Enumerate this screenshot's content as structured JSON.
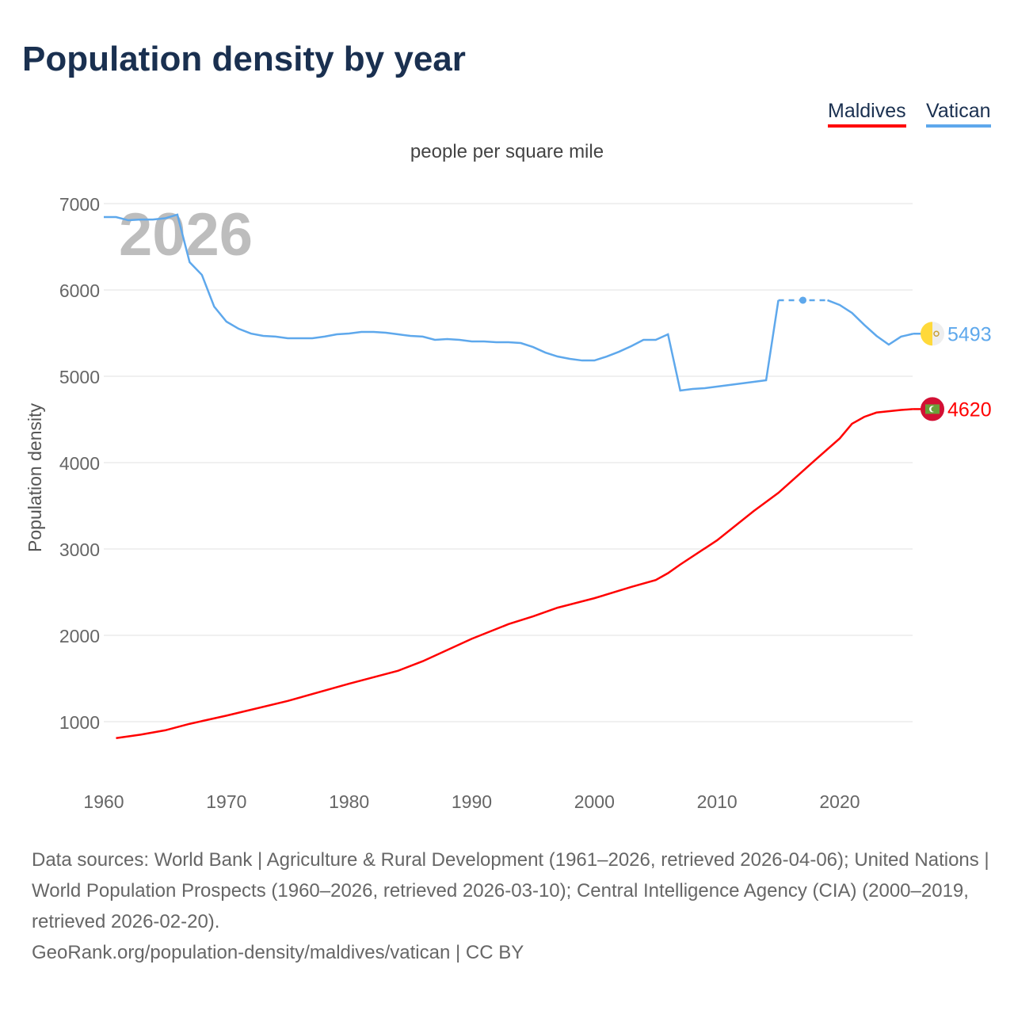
{
  "title": "Population density by year",
  "legend": [
    {
      "name": "Maldives",
      "color": "#ff0000"
    },
    {
      "name": "Vatican",
      "color": "#5ea8ec"
    }
  ],
  "unit_label": "people per square mile",
  "footer": {
    "sources": "Data sources: World Bank | Agriculture & Rural Development (1961–2026, retrieved 2026-04-06); United Nations | World Population Prospects (1960–2026, retrieved 2026-03-10); Central Intelligence Agency (CIA) (2000–2019, retrieved 2026-02-20).",
    "link": "GeoRank.org/population-density/maldives/vatican | CC BY"
  },
  "chart_data": {
    "type": "line",
    "title": "Population density by year",
    "ylabel": "Population density",
    "xlabel": "",
    "year_watermark": "2026",
    "xlim": [
      1960,
      2026
    ],
    "ylim": [
      1000,
      7000
    ],
    "xticks": [
      "1960",
      "1970",
      "1980",
      "1990",
      "2000",
      "2010",
      "2020"
    ],
    "yticks": [
      "1000",
      "2000",
      "3000",
      "4000",
      "5000",
      "6000",
      "7000"
    ],
    "grid": true,
    "series": [
      {
        "name": "Vatican",
        "color": "#5ea8ec",
        "end_label": "5493",
        "dashed_range": [
          2015,
          2019
        ],
        "marker_year": 2017,
        "x": [
          1960,
          1961,
          1962,
          1963,
          1964,
          1965,
          1966,
          1967,
          1968,
          1969,
          1970,
          1971,
          1972,
          1973,
          1974,
          1975,
          1976,
          1977,
          1978,
          1979,
          1980,
          1981,
          1982,
          1983,
          1984,
          1985,
          1986,
          1987,
          1988,
          1989,
          1990,
          1991,
          1992,
          1993,
          1994,
          1995,
          1996,
          1997,
          1998,
          1999,
          2000,
          2001,
          2002,
          2003,
          2004,
          2005,
          2006,
          2007,
          2008,
          2009,
          2010,
          2011,
          2012,
          2013,
          2014,
          2015,
          2016,
          2017,
          2018,
          2019,
          2020,
          2021,
          2022,
          2023,
          2024,
          2025,
          2026
        ],
        "values": [
          6844,
          6844,
          6807,
          6815,
          6815,
          6830,
          6872,
          6321,
          6174,
          5807,
          5633,
          5550,
          5495,
          5468,
          5460,
          5440,
          5440,
          5440,
          5460,
          5486,
          5495,
          5514,
          5514,
          5505,
          5486,
          5468,
          5460,
          5422,
          5431,
          5422,
          5404,
          5404,
          5395,
          5395,
          5385,
          5339,
          5275,
          5229,
          5202,
          5183,
          5183,
          5229,
          5284,
          5349,
          5422,
          5422,
          5486,
          4835,
          4853,
          4862,
          4881,
          4899,
          4917,
          4936,
          4954,
          5881,
          5881,
          5881,
          5881,
          5881,
          5826,
          5734,
          5596,
          5468,
          5367,
          5459,
          5493
        ]
      },
      {
        "name": "Maldives",
        "color": "#ff0000",
        "end_label": "4620",
        "x": [
          1961,
          1963,
          1965,
          1967,
          1970,
          1975,
          1980,
          1984,
          1986,
          1990,
          1993,
          1995,
          1997,
          2000,
          2003,
          2005,
          2006,
          2007,
          2010,
          2013,
          2015,
          2018,
          2020,
          2021,
          2022,
          2023,
          2024,
          2025,
          2026
        ],
        "values": [
          810,
          850,
          900,
          975,
          1070,
          1240,
          1440,
          1590,
          1700,
          1960,
          2130,
          2220,
          2320,
          2430,
          2560,
          2640,
          2720,
          2820,
          3100,
          3440,
          3650,
          4030,
          4280,
          4450,
          4530,
          4580,
          4595,
          4610,
          4620
        ]
      }
    ]
  }
}
